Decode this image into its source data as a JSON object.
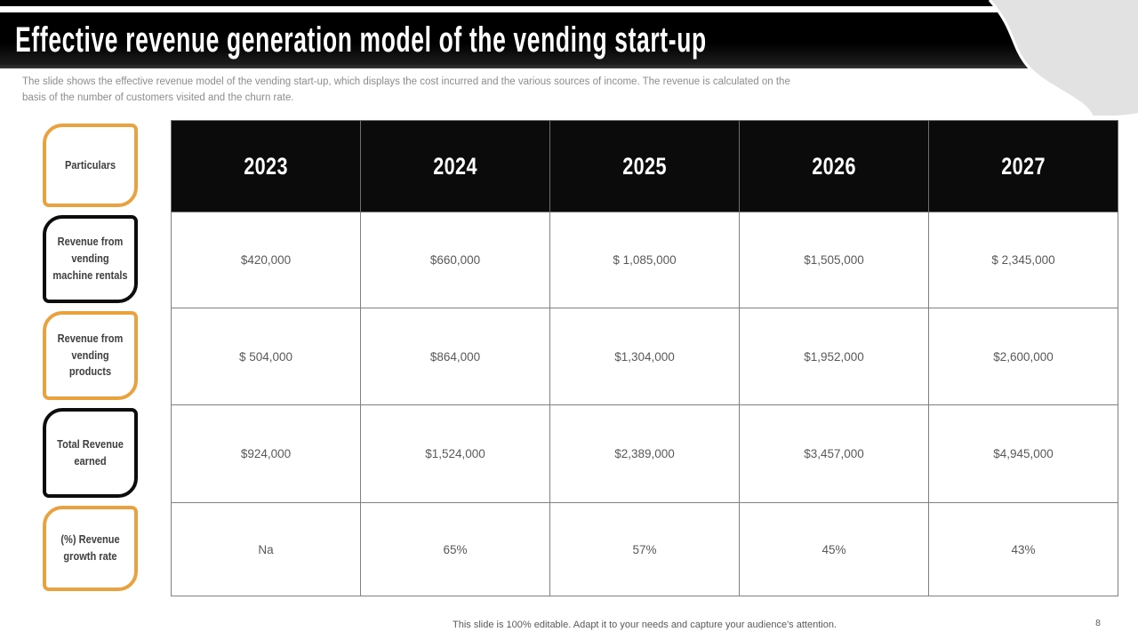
{
  "slide": {
    "title": "Effective revenue generation model of the vending start-up",
    "description": "The slide shows the effective revenue model of the vending start-up, which displays the cost incurred and the various sources of income. The revenue is calculated on the basis of the number of customers visited and the churn rate.",
    "footer": "This slide is 100% editable. Adapt it to your needs and capture your audience's attention.",
    "page_number": "8"
  },
  "colors": {
    "accent_orange": "#EAA23F",
    "bar_black": "#000000",
    "corner_blob_gray": "#e2e2e2",
    "table_border_gray": "#808080",
    "cell_text_gray": "#595959"
  },
  "table": {
    "corner_label": "Particulars",
    "year_headers": [
      "2023",
      "2024",
      "2025",
      "2026",
      "2027"
    ],
    "rows": [
      {
        "label": "Revenue from vending machine rentals",
        "style": "black",
        "values": [
          "$420,000",
          "$660,000",
          "$ 1,085,000",
          "$1,505,000",
          "$ 2,345,000"
        ]
      },
      {
        "label": "Revenue from vending products",
        "style": "orange",
        "values": [
          "$ 504,000",
          "$864,000",
          "$1,304,000",
          "$1,952,000",
          "$2,600,000"
        ]
      },
      {
        "label": "Total Revenue earned",
        "style": "black",
        "values": [
          "$924,000",
          "$1,524,000",
          "$2,389,000",
          "$3,457,000",
          "$4,945,000"
        ]
      },
      {
        "label": "(%) Revenue growth rate",
        "style": "orange",
        "values": [
          "Na",
          "65%",
          "57%",
          "45%",
          "43%"
        ]
      }
    ]
  },
  "chart_data": {
    "type": "table",
    "title": "Effective revenue generation model of the vending start-up",
    "columns": [
      "Particulars",
      "2023",
      "2024",
      "2025",
      "2026",
      "2027"
    ],
    "rows": [
      [
        "Revenue from vending machine rentals",
        "$420,000",
        "$660,000",
        "$ 1,085,000",
        "$1,505,000",
        "$ 2,345,000"
      ],
      [
        "Revenue from vending products",
        "$ 504,000",
        "$864,000",
        "$1,304,000",
        "$1,952,000",
        "$2,600,000"
      ],
      [
        "Total Revenue earned",
        "$924,000",
        "$1,524,000",
        "$2,389,000",
        "$3,457,000",
        "$4,945,000"
      ],
      [
        "(%) Revenue growth rate",
        "Na",
        "65%",
        "57%",
        "45%",
        "43%"
      ]
    ]
  }
}
